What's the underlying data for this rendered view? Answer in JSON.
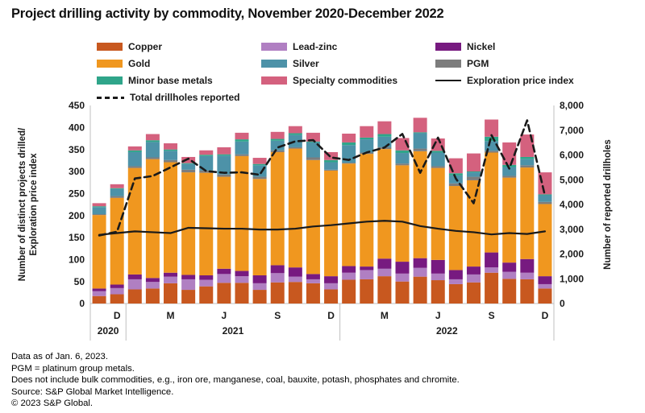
{
  "title": "Project drilling activity by commodity, November 2020-December 2022",
  "legend": {
    "columns": [
      {
        "x": 120,
        "items": [
          {
            "label": "Copper",
            "color": "#C8581F",
            "type": "swatch"
          },
          {
            "label": "Gold",
            "color": "#F0971F",
            "type": "swatch"
          },
          {
            "label": "Minor base metals",
            "color": "#2FA58A",
            "type": "swatch"
          },
          {
            "label": "Total drillholes reported",
            "color": "#1A1A1A",
            "type": "dashed-line"
          }
        ]
      },
      {
        "x": 324,
        "items": [
          {
            "label": "Lead-zinc",
            "color": "#B07FC2",
            "type": "swatch"
          },
          {
            "label": "Silver",
            "color": "#4D92A8",
            "type": "swatch"
          },
          {
            "label": "Specialty commodities",
            "color": "#D4617E",
            "type": "swatch"
          }
        ]
      },
      {
        "x": 540,
        "items": [
          {
            "label": "Nickel",
            "color": "#771A80",
            "type": "swatch"
          },
          {
            "label": "PGM",
            "color": "#7D7D7D",
            "type": "swatch"
          },
          {
            "label": "Exploration price index",
            "color": "#1A1A1A",
            "type": "solid-line"
          }
        ]
      }
    ]
  },
  "chart_data": {
    "type": "bar",
    "stacked": true,
    "title": "Project drilling activity by commodity, November 2020-December 2022",
    "x_categories": [
      "Nov 2020",
      "Dec 2020",
      "Jan 2021",
      "Feb 2021",
      "Mar 2021",
      "Apr 2021",
      "May 2021",
      "Jun 2021",
      "Jul 2021",
      "Aug 2021",
      "Sep 2021",
      "Oct 2021",
      "Nov 2021",
      "Dec 2021",
      "Jan 2022",
      "Feb 2022",
      "Mar 2022",
      "Apr 2022",
      "May 2022",
      "Jun 2022",
      "Jul 2022",
      "Aug 2022",
      "Sep 2022",
      "Oct 2022",
      "Nov 2022",
      "Dec 2022"
    ],
    "series": [
      {
        "name": "Copper",
        "color": "#C8581F",
        "values": [
          17,
          21,
          32,
          34,
          46,
          31,
          39,
          47,
          47,
          31,
          48,
          49,
          46,
          32,
          54,
          55,
          62,
          50,
          61,
          53,
          44,
          48,
          70,
          56,
          55,
          34
        ]
      },
      {
        "name": "Lead-zinc",
        "color": "#B07FC2",
        "values": [
          11,
          14,
          23,
          15,
          15,
          24,
          15,
          20,
          15,
          15,
          21,
          12,
          9,
          14,
          16,
          21,
          17,
          18,
          20,
          15,
          11,
          18,
          12,
          16,
          15,
          10
        ]
      },
      {
        "name": "Nickel",
        "color": "#771A80",
        "values": [
          6,
          8,
          11,
          9,
          9,
          10,
          10,
          12,
          12,
          18,
          18,
          21,
          12,
          16,
          15,
          8,
          23,
          27,
          22,
          31,
          21,
          18,
          34,
          21,
          31,
          18
        ]
      },
      {
        "name": "Gold",
        "color": "#F0971F",
        "values": [
          167,
          197,
          242,
          270,
          251,
          233,
          233,
          209,
          261,
          219,
          257,
          270,
          259,
          240,
          233,
          256,
          249,
          219,
          243,
          209,
          191,
          196,
          227,
          193,
          208,
          164
        ]
      },
      {
        "name": "PGM",
        "color": "#7D7D7D",
        "values": [
          2,
          4,
          4,
          4,
          5,
          6,
          5,
          5,
          4,
          5,
          4,
          3,
          6,
          2,
          2,
          3,
          4,
          4,
          6,
          4,
          6,
          8,
          4,
          4,
          5,
          5
        ]
      },
      {
        "name": "Silver",
        "color": "#4D92A8",
        "values": [
          16,
          16,
          32,
          35,
          21,
          13,
          33,
          43,
          29,
          26,
          22,
          28,
          34,
          17,
          40,
          30,
          24,
          24,
          35,
          31,
          18,
          10,
          22,
          20,
          14,
          15
        ]
      },
      {
        "name": "Minor base metals",
        "color": "#2FA58A",
        "values": [
          2,
          2,
          4,
          4,
          3,
          2,
          3,
          3,
          5,
          3,
          4,
          4,
          2,
          5,
          6,
          4,
          6,
          6,
          2,
          4,
          5,
          2,
          10,
          5,
          5,
          2
        ]
      },
      {
        "name": "Specialty commodities",
        "color": "#D4617E",
        "values": [
          7,
          9,
          9,
          14,
          14,
          14,
          10,
          16,
          15,
          14,
          16,
          16,
          20,
          18,
          20,
          26,
          29,
          28,
          33,
          28,
          34,
          41,
          39,
          51,
          51,
          50
        ]
      }
    ],
    "lines": [
      {
        "name": "Exploration price index",
        "axis": "left",
        "style": "solid",
        "color": "#1A1A1A",
        "values": [
          156,
          160,
          164,
          162,
          160,
          172,
          171,
          170,
          170,
          168,
          168,
          170,
          175,
          178,
          182,
          186,
          188,
          186,
          176,
          170,
          165,
          162,
          157,
          160,
          158,
          164
        ]
      },
      {
        "name": "Total drillholes reported",
        "axis": "right",
        "style": "dashed",
        "color": "#1A1A1A",
        "values": [
          2750,
          2900,
          5050,
          5150,
          5500,
          5850,
          5350,
          5280,
          5300,
          5200,
          6300,
          6550,
          6600,
          5900,
          5800,
          6100,
          6300,
          6850,
          5280,
          6700,
          5050,
          4050,
          6800,
          5450,
          7400,
          4350
        ]
      }
    ],
    "left_axis": {
      "label_line1": "Number of distinct projects drilled/",
      "label_line2": "Exploration price index",
      "min": 0,
      "max": 450,
      "step": 50
    },
    "right_axis": {
      "label": "Number of reported drillholes",
      "min": 0,
      "max": 8000,
      "step": 1000
    },
    "x_axis": {
      "month_ticks": [
        {
          "label": "D",
          "index": 1
        },
        {
          "label": "M",
          "index": 4
        },
        {
          "label": "J",
          "index": 7
        },
        {
          "label": "S",
          "index": 10
        },
        {
          "label": "D",
          "index": 13
        },
        {
          "label": "M",
          "index": 16
        },
        {
          "label": "J",
          "index": 19
        },
        {
          "label": "S",
          "index": 22
        },
        {
          "label": "D",
          "index": 25
        }
      ],
      "year_groups": [
        {
          "label": "2020",
          "from": 0,
          "to": 1
        },
        {
          "label": "2021",
          "from": 2,
          "to": 13
        },
        {
          "label": "2022",
          "from": 14,
          "to": 25
        }
      ]
    },
    "grid": false,
    "legend_position": "top"
  },
  "footer": {
    "lines": [
      "Data as of Jan. 6, 2023.",
      "PGM = platinum group metals.",
      "Does not include bulk commodities, e.g., iron ore, manganese, coal, bauxite, potash, phosphates and chromite.",
      "Source: S&P Global Market Intelligence.",
      "© 2023 S&P Global."
    ]
  }
}
